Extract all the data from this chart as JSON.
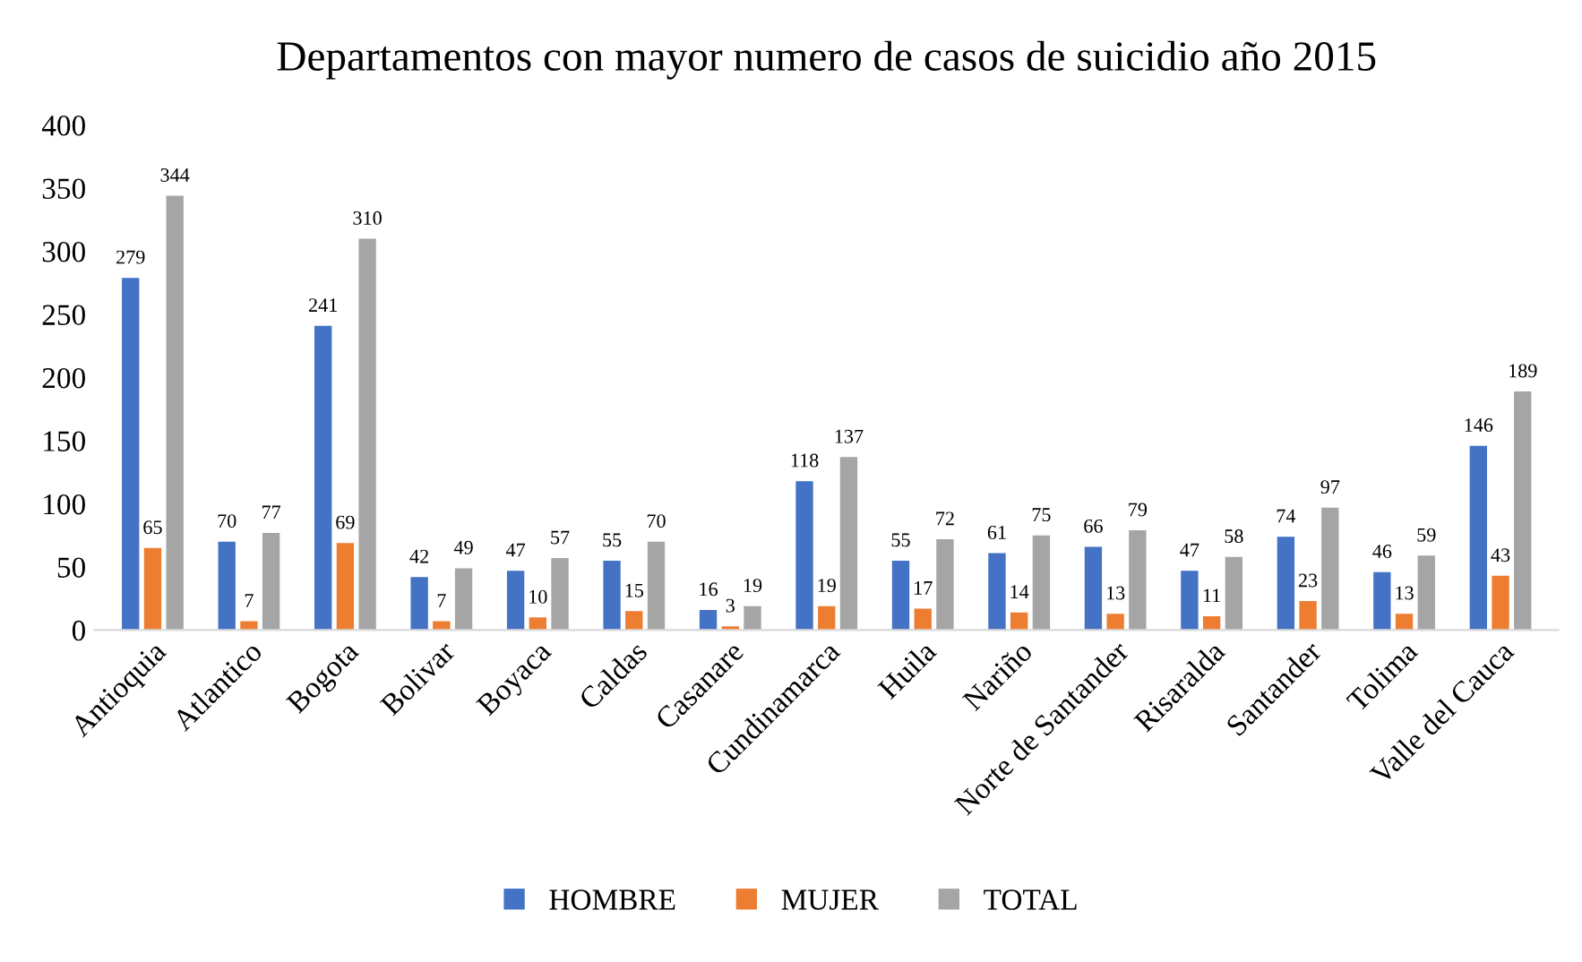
{
  "chart_data": {
    "type": "bar",
    "title": "Departamentos con mayor numero de casos de suicidio año 2015",
    "categories": [
      "Antioquia",
      "Atlantico",
      "Bogota",
      "Bolivar",
      "Boyaca",
      "Caldas",
      "Casanare",
      "Cundinamarca",
      "Huila",
      "Nariño",
      "Norte de Santander",
      "Risaralda",
      "Santander",
      "Tolima",
      "Valle del Cauca"
    ],
    "series": [
      {
        "name": "HOMBRE",
        "color": "#4472c4",
        "values": [
          279,
          70,
          241,
          42,
          47,
          55,
          16,
          118,
          55,
          61,
          66,
          47,
          74,
          46,
          146
        ]
      },
      {
        "name": "MUJER",
        "color": "#ed7d31",
        "values": [
          65,
          7,
          69,
          7,
          10,
          15,
          3,
          19,
          17,
          14,
          13,
          11,
          23,
          13,
          43
        ]
      },
      {
        "name": "TOTAL",
        "color": "#a5a5a5",
        "values": [
          344,
          77,
          310,
          49,
          57,
          70,
          19,
          137,
          72,
          75,
          79,
          58,
          97,
          59,
          189
        ]
      }
    ],
    "ylim": [
      0,
      400
    ],
    "yticks": [
      0,
      50,
      100,
      150,
      200,
      250,
      300,
      350,
      400
    ],
    "data_labels": true,
    "legend": "bottom",
    "grid": false
  }
}
